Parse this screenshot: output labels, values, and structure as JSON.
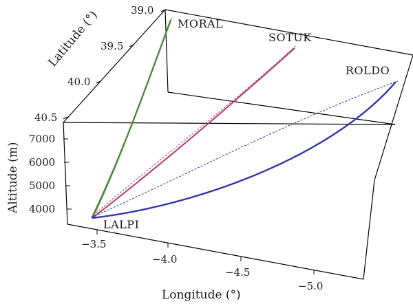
{
  "chart_data": {
    "type": "line-3d",
    "xlabel": "Longitude (°)",
    "ylabel": "Latitude (°)",
    "zlabel": "Altitude (m)",
    "x_ticks": [
      "−3.5",
      "−4.0",
      "−4.5",
      "−5.0"
    ],
    "y_ticks": [
      "39.0",
      "39.5",
      "40.0",
      "40.5"
    ],
    "z_ticks": [
      "7000",
      "6000",
      "5000",
      "4000"
    ],
    "waypoints": [
      "LALPI",
      "MORAL",
      "SOTUK",
      "ROLDO"
    ],
    "series": [
      {
        "color": "#4a8a3c",
        "x": [
          -3.45,
          -3.55,
          -3.72,
          -4.0
        ],
        "y": [
          40.6,
          40.2,
          39.6,
          39.05
        ],
        "z": [
          3400,
          4600,
          6200,
          7500
        ]
      },
      {
        "color": "#b03a6a",
        "x": [
          -3.45,
          -3.9,
          -4.45,
          -4.95
        ],
        "y": [
          40.6,
          40.3,
          39.9,
          39.25
        ],
        "z": [
          3400,
          4400,
          5600,
          7000
        ]
      },
      {
        "color": "#2f35a8",
        "x": [
          -3.45,
          -4.3,
          -5.1,
          -5.85
        ],
        "y": [
          40.6,
          40.45,
          40.2,
          39.85
        ],
        "z": [
          3400,
          4000,
          5100,
          6600
        ]
      }
    ]
  }
}
